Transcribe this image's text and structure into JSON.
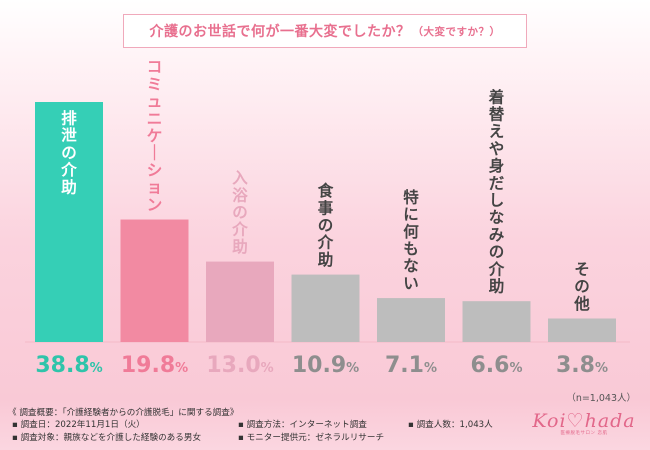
{
  "title": {
    "main": "介護のお世話で何が一番大変でしたか？",
    "sub": "（大変ですか？）"
  },
  "chart_data": {
    "type": "bar",
    "title": "介護のお世話で何が一番大変でしたか？（大変ですか？）",
    "categories": [
      "排泄の介助",
      "コミュニケーション",
      "入浴の介助",
      "食事の介助",
      "特に何もない",
      "着替えや身だしなみの介助",
      "その他"
    ],
    "values": [
      38.8,
      19.8,
      13.0,
      10.9,
      7.1,
      6.6,
      3.8
    ],
    "value_labels": [
      "38.8%",
      "19.8%",
      "13.0%",
      "10.9%",
      "7.1%",
      "6.6%",
      "3.8%"
    ],
    "unit": "%",
    "ylim": [
      0,
      38.8
    ],
    "grid": false,
    "legend": "none",
    "colors": {
      "bars": [
        "#35cfb6",
        "#f28aa2",
        "#e8a8bd",
        "#bdbdbd",
        "#bdbdbd",
        "#bdbdbd",
        "#bdbdbd"
      ],
      "value_text": [
        "#2fc4aa",
        "#f07b98",
        "#e8a8bd",
        "#8e8e8e",
        "#8e8e8e",
        "#8e8e8e",
        "#8e8e8e"
      ],
      "bar_text": [
        "#ffffff",
        "#f07b98",
        "#e8a8bd",
        "#444444",
        "#444444",
        "#444444",
        "#444444"
      ]
    }
  },
  "sample_note": "（n=1,043人）",
  "footer": {
    "heading": "《 調査概要：「介護経験者からの介護脱毛」に関する調査》",
    "items": [
      "調査日：2022年11月1日（火）",
      "調査対象：親族などを介護した経験のある男女",
      "調査方法：インターネット調査",
      "モニター提供元：ゼネラルリサーチ",
      "調査人数：1,043人"
    ]
  },
  "logo": {
    "word": "Koi♡hada",
    "tagline": "医療脱毛サロン 恋肌"
  }
}
